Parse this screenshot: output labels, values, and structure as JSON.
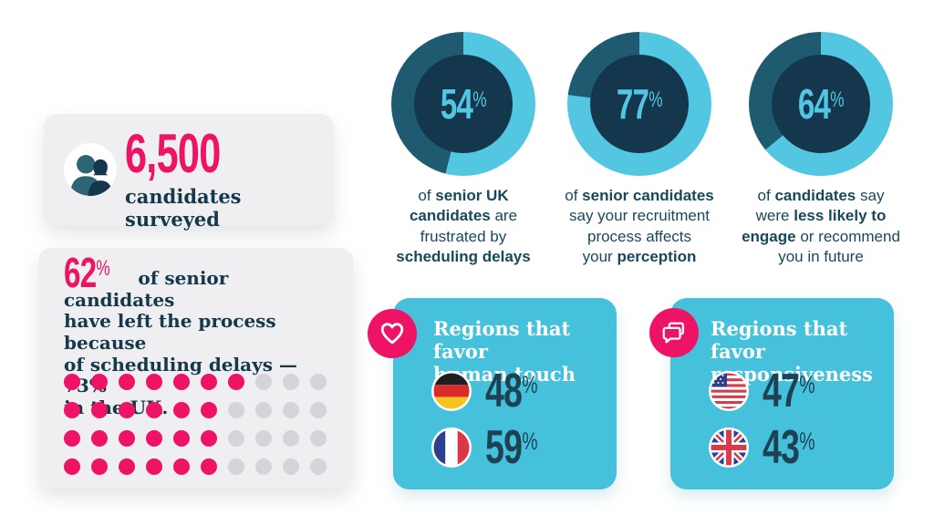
{
  "colors": {
    "pink": "#ee1365",
    "donut_active": "#53c6e2",
    "donut_rest": "#1f5b70",
    "donut_hole": "#14374d",
    "teal_card": "#45c1dc",
    "card_gray": "#efeff1",
    "dot_gray": "#d4d5d8",
    "text_navy": "#15384b",
    "caption_navy": "#17495b",
    "value_navy": "#1d4254"
  },
  "symbols": {
    "percent": "%"
  },
  "surveyed_card": {
    "value": "6,500",
    "label": "candidates surveyed",
    "icon": "people-icon"
  },
  "left_stat_card": {
    "value": "62",
    "line1": "of senior candidates",
    "line2": "have left the process because",
    "line3": "of scheduling delays — 73%",
    "line4": "in the UK.",
    "dot_grid": {
      "columns": 10,
      "rows": [
        7,
        6,
        6,
        6
      ],
      "total_dots": 40,
      "filled_dots": 25
    }
  },
  "donuts": [
    {
      "value": 54,
      "caption": [
        [
          {
            "t": "of ",
            "b": 0
          },
          {
            "t": "senior UK",
            "b": 1
          }
        ],
        [
          {
            "t": "candidates",
            "b": 1
          },
          {
            "t": " are",
            "b": 0
          }
        ],
        [
          {
            "t": "frustrated by",
            "b": 0
          }
        ],
        [
          {
            "t": "scheduling delays",
            "b": 1
          }
        ]
      ]
    },
    {
      "value": 77,
      "caption": [
        [
          {
            "t": "of ",
            "b": 0
          },
          {
            "t": "senior candidates",
            "b": 1
          }
        ],
        [
          {
            "t": "say your recruitment",
            "b": 0
          }
        ],
        [
          {
            "t": "process affects",
            "b": 0
          }
        ],
        [
          {
            "t": "your ",
            "b": 0
          },
          {
            "t": "perception",
            "b": 1
          }
        ]
      ]
    },
    {
      "value": 64,
      "caption": [
        [
          {
            "t": "of ",
            "b": 0
          },
          {
            "t": "candidates",
            "b": 1
          },
          {
            "t": " say",
            "b": 0
          }
        ],
        [
          {
            "t": "were ",
            "b": 0
          },
          {
            "t": "less likely to",
            "b": 1
          }
        ],
        [
          {
            "t": "engage",
            "b": 1
          },
          {
            "t": " or recommend",
            "b": 0
          }
        ],
        [
          {
            "t": "you in future",
            "b": 0
          }
        ]
      ]
    }
  ],
  "region_cards": [
    {
      "icon": "heart-icon",
      "title_line1": "Regions that favor",
      "title_line2": "human touch",
      "rows": [
        {
          "flag": "germany",
          "value": "48"
        },
        {
          "flag": "france",
          "value": "59"
        }
      ]
    },
    {
      "icon": "chat-icon",
      "title_line1": "Regions that favor",
      "title_line2": "responsiveness",
      "rows": [
        {
          "flag": "usa",
          "value": "47"
        },
        {
          "flag": "uk",
          "value": "43"
        }
      ]
    }
  ],
  "chart_data": [
    {
      "type": "pie",
      "variant": "donut",
      "value_pct": 54,
      "values": [
        54,
        46
      ],
      "labels": [
        "share",
        "remainder"
      ],
      "title": "of senior UK candidates are frustrated by scheduling delays"
    },
    {
      "type": "pie",
      "variant": "donut",
      "value_pct": 77,
      "values": [
        77,
        23
      ],
      "labels": [
        "share",
        "remainder"
      ],
      "title": "of senior candidates say your recruitment process affects your perception"
    },
    {
      "type": "pie",
      "variant": "donut",
      "value_pct": 64,
      "values": [
        64,
        36
      ],
      "labels": [
        "share",
        "remainder"
      ],
      "title": "of candidates say were less likely to engage or recommend you in future"
    },
    {
      "type": "pictograph",
      "value_pct": 62,
      "uk_value_pct": 73,
      "columns": 10,
      "dots_total": 40,
      "dots_filled": 25,
      "dot_rows_filled": [
        7,
        6,
        6,
        6
      ],
      "title": "62% of senior candidates have left the process because of scheduling delays — 73% in the UK."
    },
    {
      "type": "stat",
      "value": 6500,
      "label": "candidates surveyed"
    },
    {
      "type": "bar",
      "title": "Regions that favor human touch",
      "categories": [
        "Germany",
        "France"
      ],
      "values": [
        48,
        59
      ]
    },
    {
      "type": "bar",
      "title": "Regions that favor responsiveness",
      "categories": [
        "USA",
        "UK"
      ],
      "values": [
        47,
        43
      ]
    }
  ]
}
